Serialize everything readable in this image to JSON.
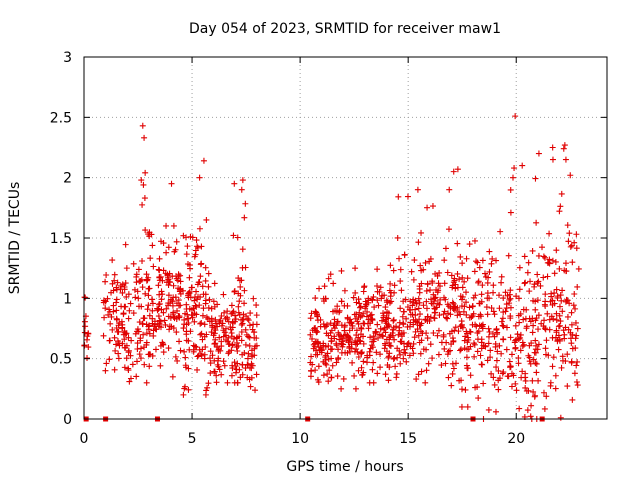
{
  "chart_data": {
    "type": "scatter",
    "title": "Day 054 of 2023, SRMTID for receiver maw1",
    "xlabel": "GPS time / hours",
    "ylabel": "SRMTID / TECUs",
    "xlim": [
      0,
      24.2
    ],
    "ylim": [
      0,
      3
    ],
    "x_ticks": [
      0,
      5,
      10,
      15,
      20
    ],
    "x_tick_labels": [
      "0",
      "5",
      "10",
      "15",
      "20"
    ],
    "y_ticks": [
      0,
      0.5,
      1,
      1.5,
      2,
      2.5,
      3
    ],
    "y_tick_labels": [
      "0",
      "0.5",
      "1",
      "1.5",
      "2",
      "2.5",
      "3"
    ],
    "grid": true,
    "marker": "+",
    "color": "#e00000",
    "series": [
      {
        "name": "SRMTID",
        "segments": [
          {
            "x_start": 0.0,
            "x_end": 0.2,
            "n": 14,
            "mean": 0.85,
            "spread": 0.2,
            "max": 1.1,
            "min": 0.5
          },
          {
            "x_start": 0.9,
            "x_end": 1.3,
            "n": 20,
            "mean": 0.8,
            "spread": 0.2,
            "max": 1.2,
            "min": 0.4
          },
          {
            "x_start": 1.3,
            "x_end": 2.5,
            "n": 90,
            "mean": 0.8,
            "spread": 0.22,
            "max": 1.45,
            "min": 0.3
          },
          {
            "x_start": 2.5,
            "x_end": 3.3,
            "n": 70,
            "mean": 0.9,
            "spread": 0.28,
            "max": 1.9,
            "min": 0.3
          },
          {
            "x_start": 3.3,
            "x_end": 4.5,
            "n": 110,
            "mean": 0.95,
            "spread": 0.28,
            "max": 1.6,
            "min": 0.35
          },
          {
            "x_start": 4.5,
            "x_end": 5.8,
            "n": 120,
            "mean": 0.9,
            "spread": 0.3,
            "max": 1.9,
            "min": 0.2
          },
          {
            "x_start": 5.8,
            "x_end": 6.9,
            "n": 90,
            "mean": 0.65,
            "spread": 0.2,
            "max": 1.2,
            "min": 0.3
          },
          {
            "x_start": 6.9,
            "x_end": 7.5,
            "n": 60,
            "mean": 0.75,
            "spread": 0.3,
            "max": 1.95,
            "min": 0.3
          },
          {
            "x_start": 7.5,
            "x_end": 8.0,
            "n": 40,
            "mean": 0.6,
            "spread": 0.18,
            "max": 1.1,
            "min": 0.15
          },
          {
            "x_start": 10.4,
            "x_end": 11.5,
            "n": 90,
            "mean": 0.65,
            "spread": 0.2,
            "max": 1.2,
            "min": 0.3
          },
          {
            "x_start": 11.5,
            "x_end": 13.0,
            "n": 130,
            "mean": 0.7,
            "spread": 0.22,
            "max": 1.25,
            "min": 0.25
          },
          {
            "x_start": 13.0,
            "x_end": 14.5,
            "n": 130,
            "mean": 0.75,
            "spread": 0.22,
            "max": 1.3,
            "min": 0.3
          },
          {
            "x_start": 14.5,
            "x_end": 16.5,
            "n": 160,
            "mean": 0.85,
            "spread": 0.25,
            "max": 1.9,
            "min": 0.3
          },
          {
            "x_start": 16.5,
            "x_end": 18.0,
            "n": 120,
            "mean": 0.8,
            "spread": 0.28,
            "max": 2.05,
            "min": 0.1
          },
          {
            "x_start": 18.0,
            "x_end": 19.5,
            "n": 110,
            "mean": 0.7,
            "spread": 0.32,
            "max": 1.8,
            "min": 0.0
          },
          {
            "x_start": 19.5,
            "x_end": 21.0,
            "n": 120,
            "mean": 0.65,
            "spread": 0.35,
            "max": 2.1,
            "min": 0.0
          },
          {
            "x_start": 21.0,
            "x_end": 22.9,
            "n": 140,
            "mean": 0.85,
            "spread": 0.35,
            "max": 2.25,
            "min": 0.0
          }
        ],
        "outliers": [
          {
            "x": 2.72,
            "y": 2.43
          },
          {
            "x": 2.78,
            "y": 2.33
          },
          {
            "x": 2.65,
            "y": 1.98
          },
          {
            "x": 2.75,
            "y": 1.94
          },
          {
            "x": 2.83,
            "y": 2.04
          },
          {
            "x": 4.05,
            "y": 1.95
          },
          {
            "x": 5.55,
            "y": 2.14
          },
          {
            "x": 5.35,
            "y": 2.0
          },
          {
            "x": 7.35,
            "y": 1.98
          },
          {
            "x": 7.3,
            "y": 1.9
          },
          {
            "x": 19.95,
            "y": 2.51
          },
          {
            "x": 19.9,
            "y": 2.08
          },
          {
            "x": 19.85,
            "y": 2.0
          },
          {
            "x": 17.3,
            "y": 2.07
          },
          {
            "x": 16.9,
            "y": 1.9
          },
          {
            "x": 22.25,
            "y": 2.27
          },
          {
            "x": 22.2,
            "y": 2.24
          },
          {
            "x": 22.3,
            "y": 2.15
          },
          {
            "x": 21.05,
            "y": 2.2
          },
          {
            "x": 21.7,
            "y": 2.15
          },
          {
            "x": 22.5,
            "y": 2.02
          }
        ],
        "zero_markers": [
          0.1,
          1.0,
          3.4,
          10.35,
          18.0,
          21.2
        ]
      }
    ]
  }
}
